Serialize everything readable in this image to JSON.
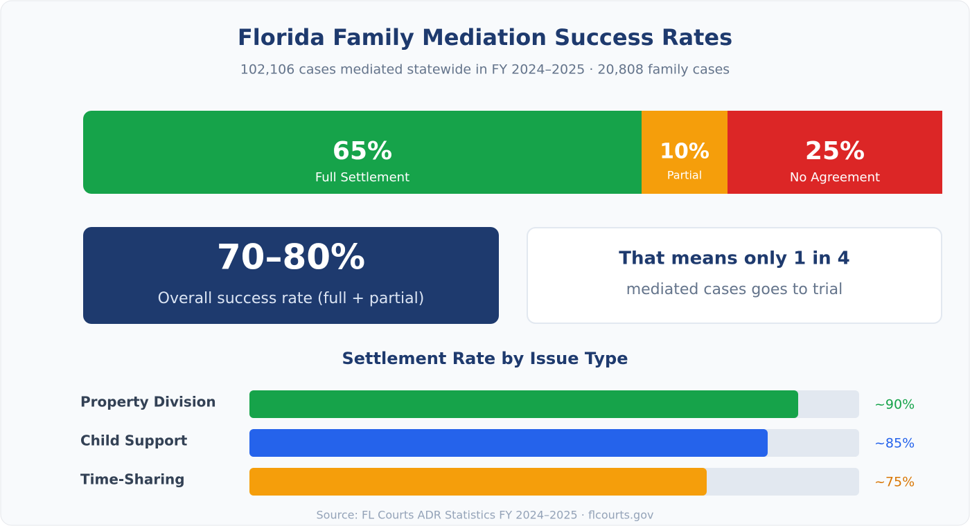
{
  "header": {
    "title": "Florida Family Mediation Success Rates",
    "subtitle": "102,106 cases mediated statewide in FY 2024–2025 · 20,808 family cases"
  },
  "chart_data": [
    {
      "type": "stacked-bar",
      "categories": [
        "Full Settlement",
        "Partial",
        "No Agreement"
      ],
      "values": [
        65,
        10,
        25
      ],
      "value_labels": [
        "65%",
        "10%",
        "25%"
      ],
      "colors": [
        "#16a34a",
        "#f59e0b",
        "#dc2626"
      ],
      "xlim": [
        0,
        100
      ]
    },
    {
      "type": "bar",
      "title": "Settlement Rate by Issue Type",
      "categories": [
        "Property Division",
        "Child Support",
        "Time-Sharing"
      ],
      "values": [
        90,
        85,
        75
      ],
      "value_labels": [
        "~90%",
        "~85%",
        "~75%"
      ],
      "colors": [
        "#16a34a",
        "#2563eb",
        "#f59e0b"
      ],
      "label_colors": [
        "#16a34a",
        "#2563eb",
        "#d97706"
      ],
      "xlim": [
        0,
        100
      ]
    }
  ],
  "cards": [
    {
      "value": "70–80%",
      "label": "Overall success rate (full + partial)"
    },
    {
      "headline": "That means only 1 in 4",
      "text": "mediated cases goes to trial"
    }
  ],
  "footer": {
    "source": "Source: FL Courts ADR Statistics FY 2024–2025 · flcourts.gov"
  }
}
